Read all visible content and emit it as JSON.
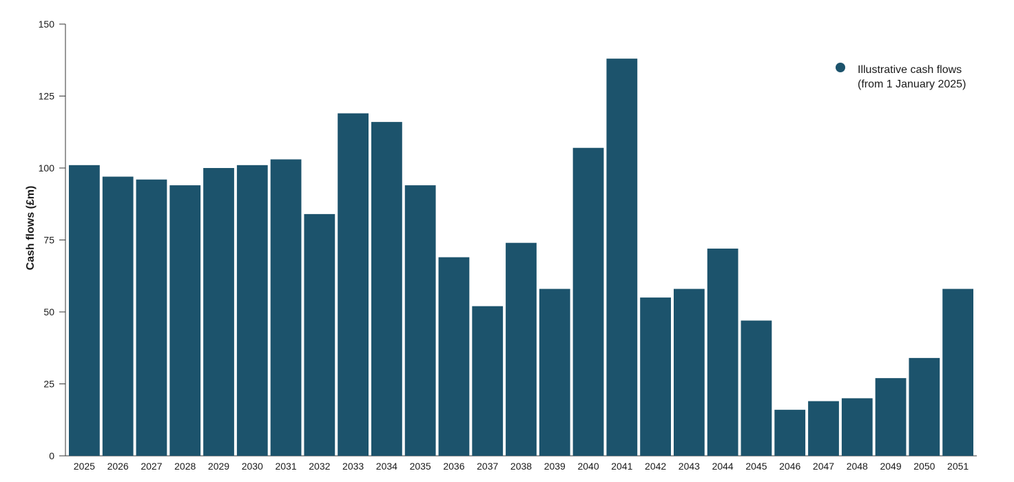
{
  "chart_data": {
    "type": "bar",
    "title": "",
    "xlabel": "",
    "ylabel": "Cash flows (£m)",
    "ylim": [
      0,
      150
    ],
    "yticks": [
      0,
      25,
      50,
      75,
      100,
      125,
      150
    ],
    "grid": false,
    "legend_position": "top-right",
    "bar_color": "#1c536c",
    "categories": [
      "2025",
      "2026",
      "2027",
      "2028",
      "2029",
      "2030",
      "2031",
      "2032",
      "2033",
      "2034",
      "2035",
      "2036",
      "2037",
      "2038",
      "2039",
      "2040",
      "2041",
      "2042",
      "2043",
      "2044",
      "2045",
      "2046",
      "2047",
      "2048",
      "2049",
      "2050",
      "2051"
    ],
    "series": [
      {
        "name": "Illustrative cash flows (from 1 January 2025)",
        "legend_lines": [
          "Illustrative cash flows",
          "(from 1 January 2025)"
        ],
        "values": [
          101,
          97,
          96,
          94,
          100,
          101,
          103,
          84,
          119,
          116,
          94,
          69,
          52,
          74,
          58,
          107,
          138,
          55,
          58,
          72,
          47,
          16,
          19,
          20,
          27,
          34,
          58
        ]
      }
    ]
  }
}
